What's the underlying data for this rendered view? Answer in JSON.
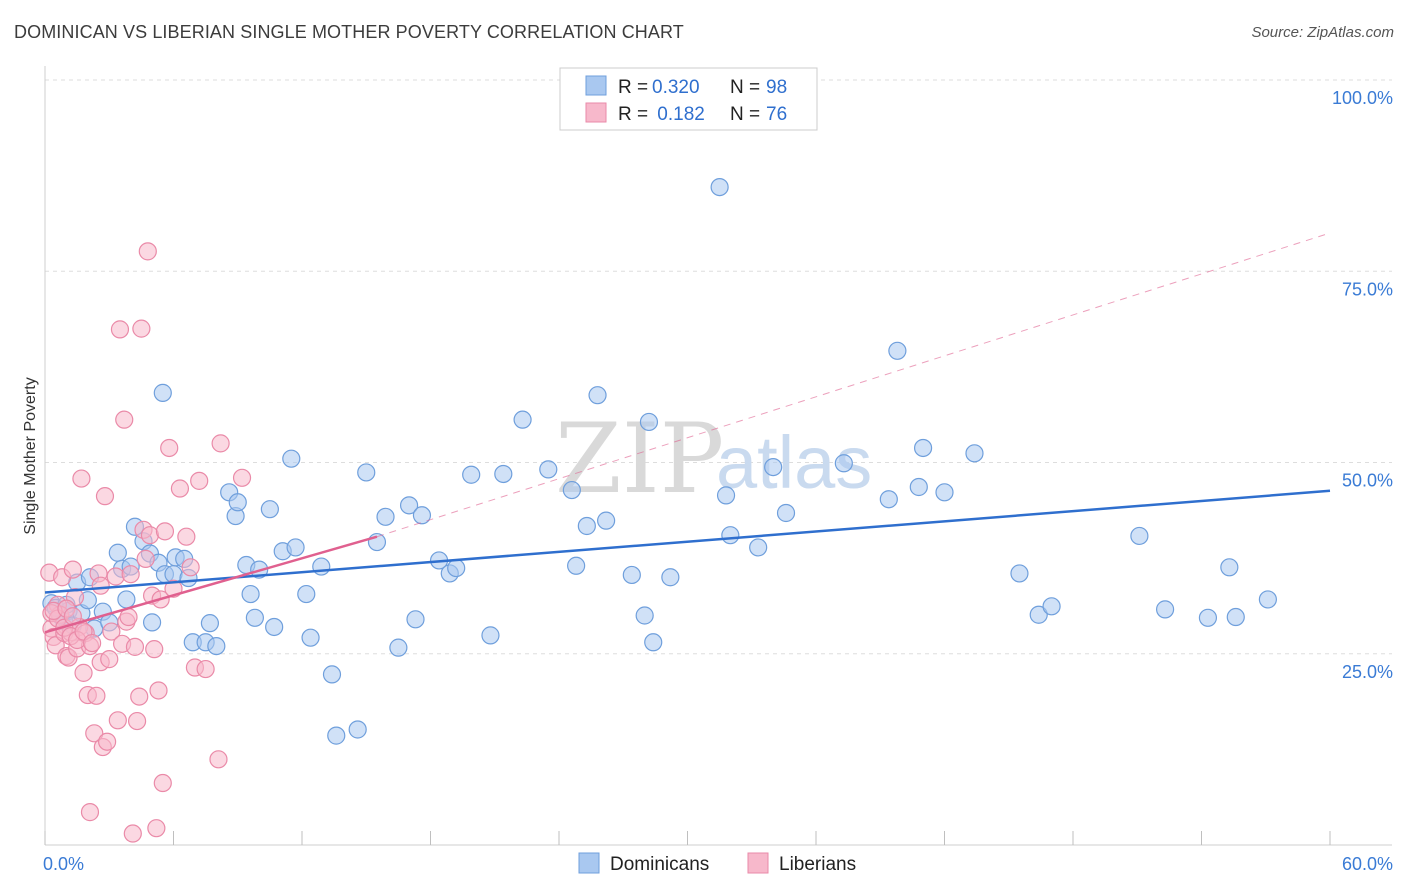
{
  "title": "DOMINICAN VS LIBERIAN SINGLE MOTHER POVERTY CORRELATION CHART",
  "source": "Source: ZipAtlas.com",
  "watermark": {
    "zip": "ZIP",
    "atlas": "atlas"
  },
  "colors": {
    "dominican_fill": "#a9c8f0",
    "dominican_stroke": "#6f9fdc",
    "dominican_line": "#2f6fce",
    "liberian_fill": "#f7b8cb",
    "liberian_stroke": "#ea8aa8",
    "liberian_line": "#e0608f",
    "accent_text": "#3a7bd5"
  },
  "legend": {
    "rows": [
      {
        "r_label": "R =",
        "r_value": "0.320",
        "n_label": "N =",
        "n_value": "98"
      },
      {
        "r_label": "R =",
        "r_value": " 0.182",
        "n_label": "N =",
        "n_value": "76"
      }
    ]
  },
  "bottom_legend": [
    "Dominicans",
    "Liberians"
  ],
  "chart_data": {
    "type": "scatter",
    "ylabel": "Single Mother Poverty",
    "xlim": [
      0,
      60
    ],
    "ylim": [
      0,
      100
    ],
    "x_tick_labels": [
      {
        "value": 0,
        "label": "0.0%"
      },
      {
        "value": 60,
        "label": "60.0%"
      }
    ],
    "x_tick_marks": [
      0,
      6,
      12,
      18,
      24,
      30,
      36,
      42,
      48,
      54,
      60
    ],
    "y_ticks": [
      {
        "value": 25,
        "label": "25.0%"
      },
      {
        "value": 50,
        "label": "50.0%"
      },
      {
        "value": 75,
        "label": "75.0%"
      },
      {
        "value": 100,
        "label": "100.0%"
      }
    ],
    "grid": true,
    "legend_position": "top-center",
    "series": [
      {
        "name": "Dominicans",
        "R": 0.32,
        "N": 98,
        "trend": {
          "x": [
            0,
            60
          ],
          "y": [
            33.0,
            46.3
          ],
          "style": "solid"
        },
        "points": [
          [
            0.3,
            31.6
          ],
          [
            0.5,
            31.0
          ],
          [
            0.7,
            30.0
          ],
          [
            0.9,
            29.2
          ],
          [
            1.1,
            30.6
          ],
          [
            1.3,
            28.7
          ],
          [
            1.5,
            34.3
          ],
          [
            1.7,
            30.3
          ],
          [
            2.0,
            32.0
          ],
          [
            2.3,
            28.3
          ],
          [
            2.7,
            30.5
          ],
          [
            3.0,
            29.1
          ],
          [
            3.4,
            38.2
          ],
          [
            3.6,
            36.1
          ],
          [
            3.8,
            32.1
          ],
          [
            4.0,
            36.4
          ],
          [
            4.2,
            41.6
          ],
          [
            4.6,
            39.7
          ],
          [
            4.9,
            38.1
          ],
          [
            5.0,
            29.1
          ],
          [
            5.3,
            36.9
          ],
          [
            5.5,
            59.1
          ],
          [
            5.6,
            35.4
          ],
          [
            6.0,
            35.4
          ],
          [
            6.1,
            37.6
          ],
          [
            6.5,
            37.4
          ],
          [
            6.7,
            34.9
          ],
          [
            6.9,
            26.5
          ],
          [
            7.5,
            26.5
          ],
          [
            7.7,
            29.0
          ],
          [
            8.0,
            26.0
          ],
          [
            8.6,
            46.1
          ],
          [
            8.9,
            43.0
          ],
          [
            9.0,
            44.8
          ],
          [
            9.4,
            36.6
          ],
          [
            9.6,
            32.8
          ],
          [
            9.8,
            29.7
          ],
          [
            10.0,
            36.0
          ],
          [
            10.5,
            43.9
          ],
          [
            10.7,
            28.5
          ],
          [
            11.1,
            38.4
          ],
          [
            11.5,
            50.5
          ],
          [
            11.7,
            38.9
          ],
          [
            12.2,
            32.8
          ],
          [
            12.4,
            27.1
          ],
          [
            12.9,
            36.4
          ],
          [
            13.4,
            22.3
          ],
          [
            13.6,
            14.3
          ],
          [
            14.6,
            15.1
          ],
          [
            15.0,
            48.7
          ],
          [
            15.5,
            39.6
          ],
          [
            15.9,
            42.9
          ],
          [
            16.5,
            25.8
          ],
          [
            17.0,
            44.4
          ],
          [
            17.3,
            29.5
          ],
          [
            17.6,
            43.1
          ],
          [
            18.4,
            37.2
          ],
          [
            18.9,
            35.5
          ],
          [
            19.2,
            36.2
          ],
          [
            19.9,
            48.4
          ],
          [
            20.8,
            27.4
          ],
          [
            21.4,
            48.5
          ],
          [
            22.3,
            55.6
          ],
          [
            23.5,
            49.1
          ],
          [
            24.6,
            46.4
          ],
          [
            24.8,
            36.5
          ],
          [
            25.3,
            41.7
          ],
          [
            25.8,
            58.8
          ],
          [
            26.2,
            42.4
          ],
          [
            27.4,
            35.3
          ],
          [
            28.0,
            30.0
          ],
          [
            28.2,
            55.3
          ],
          [
            28.4,
            26.5
          ],
          [
            31.5,
            86.0
          ],
          [
            31.8,
            45.7
          ],
          [
            32.0,
            40.5
          ],
          [
            33.3,
            38.9
          ],
          [
            34.0,
            49.4
          ],
          [
            34.6,
            43.4
          ],
          [
            37.3,
            49.9
          ],
          [
            39.4,
            45.2
          ],
          [
            39.8,
            64.6
          ],
          [
            40.8,
            46.8
          ],
          [
            41.0,
            51.9
          ],
          [
            42.0,
            46.1
          ],
          [
            43.4,
            51.2
          ],
          [
            45.5,
            35.5
          ],
          [
            46.4,
            30.1
          ],
          [
            47.0,
            31.2
          ],
          [
            51.1,
            40.4
          ],
          [
            52.3,
            30.8
          ],
          [
            54.3,
            29.7
          ],
          [
            55.3,
            36.3
          ],
          [
            55.6,
            29.8
          ],
          [
            57.1,
            32.1
          ],
          [
            1.0,
            31.4
          ],
          [
            2.1,
            35.0
          ],
          [
            29.2,
            35.0
          ]
        ]
      },
      {
        "name": "Liberians",
        "R": 0.182,
        "N": 76,
        "trend": {
          "x": [
            0,
            15.5
          ],
          "y": [
            27.8,
            40.3
          ],
          "style": "solid",
          "extended": {
            "x": [
              15.5,
              60
            ],
            "y": [
              40.3,
              80.0
            ],
            "style": "dashed"
          }
        },
        "points": [
          [
            0.2,
            35.6
          ],
          [
            0.3,
            28.3
          ],
          [
            0.4,
            27.2
          ],
          [
            0.5,
            26.1
          ],
          [
            0.6,
            31.4
          ],
          [
            0.7,
            30.1
          ],
          [
            0.8,
            35.0
          ],
          [
            0.9,
            27.7
          ],
          [
            1.0,
            24.7
          ],
          [
            1.1,
            24.5
          ],
          [
            1.2,
            27.8
          ],
          [
            1.3,
            36.0
          ],
          [
            1.4,
            32.4
          ],
          [
            1.5,
            25.7
          ],
          [
            1.6,
            28.5
          ],
          [
            1.7,
            47.9
          ],
          [
            1.8,
            22.5
          ],
          [
            1.9,
            27.7
          ],
          [
            2.0,
            19.6
          ],
          [
            2.1,
            26.0
          ],
          [
            2.3,
            14.6
          ],
          [
            2.4,
            19.5
          ],
          [
            2.5,
            35.5
          ],
          [
            2.6,
            23.9
          ],
          [
            2.7,
            12.8
          ],
          [
            2.8,
            45.6
          ],
          [
            2.9,
            13.5
          ],
          [
            3.0,
            24.3
          ],
          [
            3.1,
            27.9
          ],
          [
            3.3,
            35.1
          ],
          [
            3.4,
            16.3
          ],
          [
            3.5,
            67.4
          ],
          [
            3.6,
            26.3
          ],
          [
            3.7,
            55.6
          ],
          [
            3.8,
            29.2
          ],
          [
            3.9,
            29.8
          ],
          [
            4.0,
            35.4
          ],
          [
            4.1,
            1.5
          ],
          [
            4.2,
            25.9
          ],
          [
            4.3,
            16.2
          ],
          [
            4.4,
            19.4
          ],
          [
            4.5,
            67.5
          ],
          [
            4.6,
            41.2
          ],
          [
            4.7,
            37.4
          ],
          [
            4.8,
            77.6
          ],
          [
            4.9,
            40.5
          ],
          [
            5.0,
            32.6
          ],
          [
            5.1,
            25.6
          ],
          [
            5.2,
            2.2
          ],
          [
            5.3,
            20.2
          ],
          [
            5.4,
            32.1
          ],
          [
            5.5,
            8.1
          ],
          [
            5.6,
            41.0
          ],
          [
            5.8,
            51.9
          ],
          [
            6.0,
            33.5
          ],
          [
            6.3,
            46.6
          ],
          [
            6.6,
            40.3
          ],
          [
            6.8,
            36.3
          ],
          [
            7.0,
            23.2
          ],
          [
            7.2,
            47.6
          ],
          [
            7.5,
            23.0
          ],
          [
            8.1,
            11.2
          ],
          [
            8.2,
            52.5
          ],
          [
            9.2,
            48.0
          ],
          [
            0.3,
            30.3
          ],
          [
            0.6,
            29.6
          ],
          [
            0.9,
            28.4
          ],
          [
            1.2,
            27.3
          ],
          [
            1.5,
            26.8
          ],
          [
            1.8,
            27.9
          ],
          [
            2.2,
            26.4
          ],
          [
            0.4,
            30.6
          ],
          [
            1.0,
            30.9
          ],
          [
            1.3,
            29.9
          ],
          [
            2.1,
            4.3
          ],
          [
            2.6,
            33.9
          ]
        ]
      }
    ]
  }
}
